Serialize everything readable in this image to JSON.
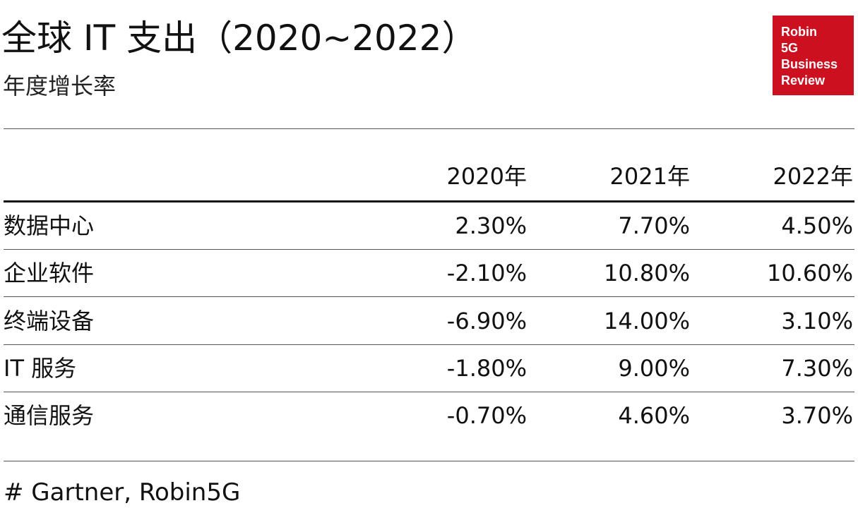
{
  "header": {
    "title": "全球 IT 支出（2020~2022）",
    "subtitle": "年度增长率"
  },
  "logo": {
    "lines": [
      "Robin",
      "5G",
      "Business",
      "Review"
    ]
  },
  "table": {
    "columns": [
      "2020年",
      "2021年",
      "2022年"
    ],
    "rows": [
      [
        "数据中心",
        "2.30%",
        "7.70%",
        "4.50%"
      ],
      [
        "企业软件",
        "-2.10%",
        "10.80%",
        "10.60%"
      ],
      [
        "终端设备",
        "-6.90%",
        "14.00%",
        "3.10%"
      ],
      [
        "IT 服务",
        "-1.80%",
        "9.00%",
        "7.30%"
      ],
      [
        "通信服务",
        "-0.70%",
        "4.60%",
        "3.70%"
      ]
    ]
  },
  "source": "# Gartner, Robin5G"
}
